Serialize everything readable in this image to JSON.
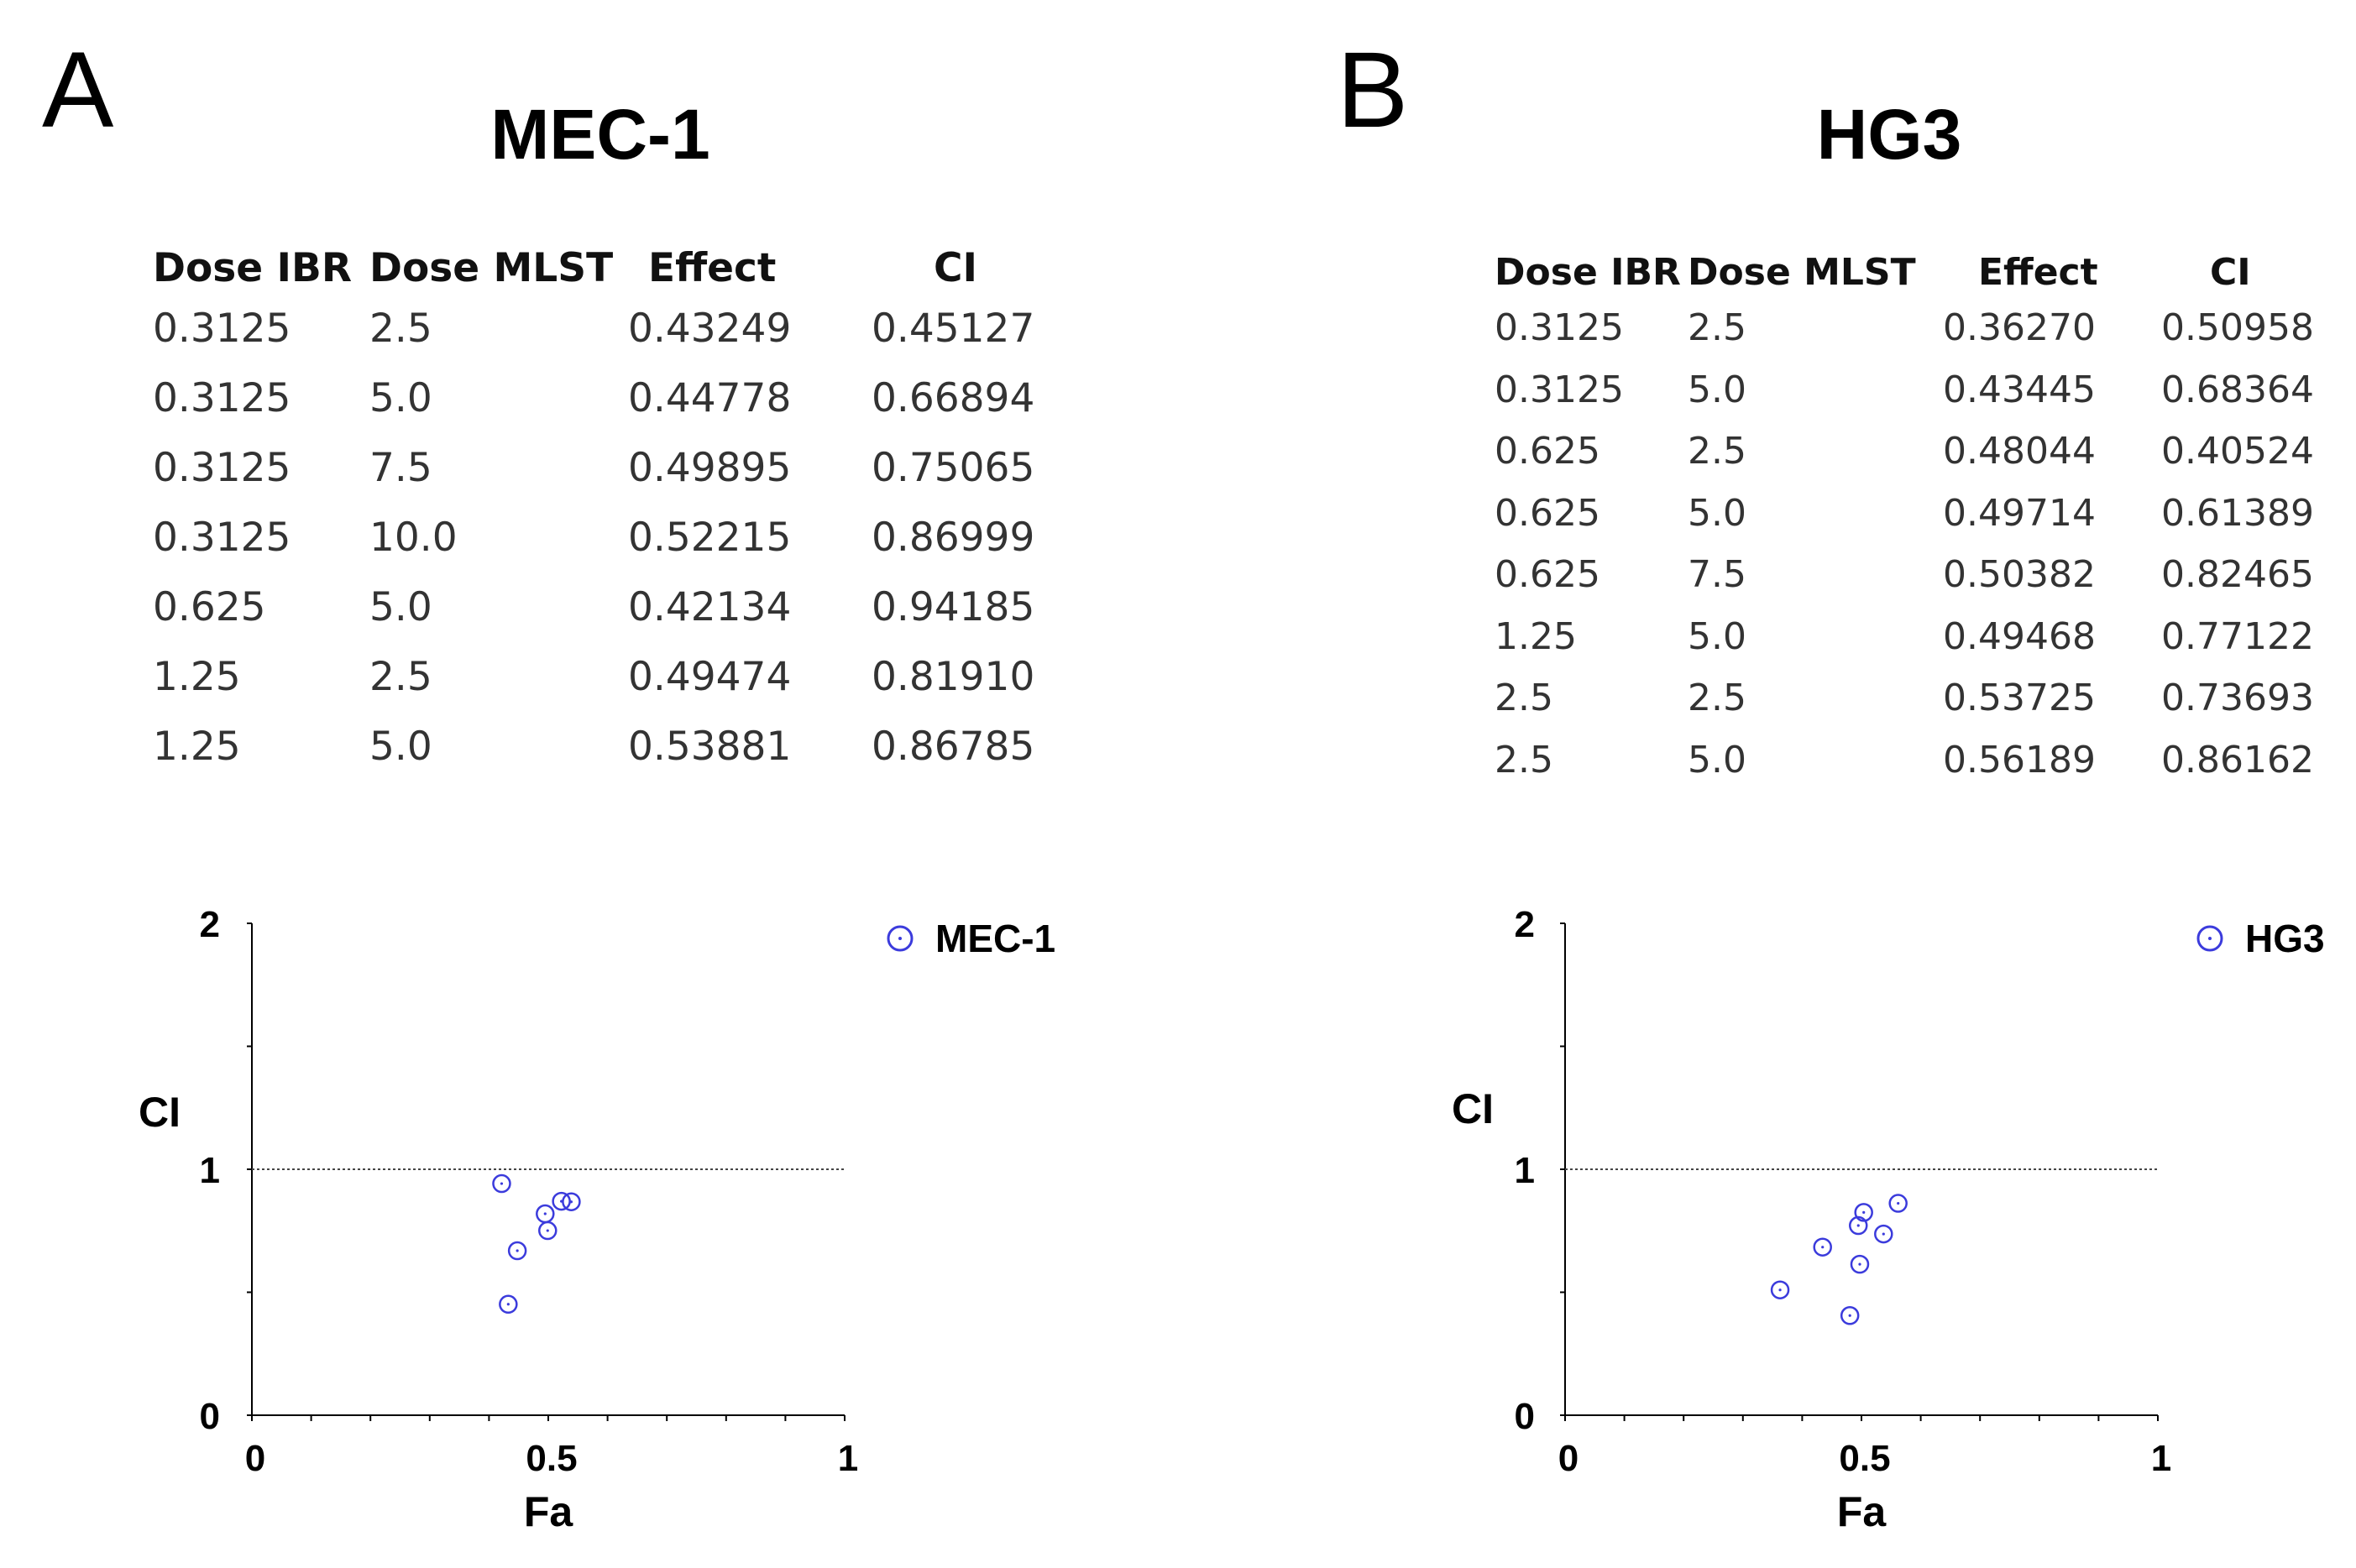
{
  "panels": [
    {
      "letter": "A",
      "title": "MEC-1",
      "table": {
        "headers": [
          "Dose IBR",
          "Dose MLST",
          "Effect",
          "CI"
        ],
        "rows": [
          [
            "0.3125",
            "2.5",
            "0.43249",
            "0.45127"
          ],
          [
            "0.3125",
            "5.0",
            "0.44778",
            "0.66894"
          ],
          [
            "0.3125",
            "7.5",
            "0.49895",
            "0.75065"
          ],
          [
            "0.3125",
            "10.0",
            "0.52215",
            "0.86999"
          ],
          [
            "0.625",
            "5.0",
            "0.42134",
            "0.94185"
          ],
          [
            "1.25",
            "2.5",
            "0.49474",
            "0.81910"
          ],
          [
            "1.25",
            "5.0",
            "0.53881",
            "0.86785"
          ]
        ]
      }
    },
    {
      "letter": "B",
      "title": "HG3",
      "table": {
        "headers": [
          "Dose IBR",
          "Dose MLST",
          "Effect",
          "CI"
        ],
        "rows": [
          [
            "0.3125",
            "2.5",
            "0.36270",
            "0.50958"
          ],
          [
            "0.3125",
            "5.0",
            "0.43445",
            "0.68364"
          ],
          [
            "0.625",
            "2.5",
            "0.48044",
            "0.40524"
          ],
          [
            "0.625",
            "5.0",
            "0.49714",
            "0.61389"
          ],
          [
            "0.625",
            "7.5",
            "0.50382",
            "0.82465"
          ],
          [
            "1.25",
            "5.0",
            "0.49468",
            "0.77122"
          ],
          [
            "2.5",
            "2.5",
            "0.53725",
            "0.73693"
          ],
          [
            "2.5",
            "5.0",
            "0.56189",
            "0.86162"
          ]
        ]
      }
    }
  ],
  "chart_data": [
    {
      "type": "scatter",
      "title": "",
      "xlabel": "Fa",
      "ylabel": "CI",
      "xlim": [
        0,
        1
      ],
      "ylim": [
        0,
        2
      ],
      "xticks": [
        "0",
        "0.5",
        "1"
      ],
      "yticks": [
        "0",
        "1",
        "2"
      ],
      "reference_line": 1,
      "legend": "top-right",
      "marker_color": "#3b3bdc",
      "series": [
        {
          "name": "MEC-1",
          "x": [
            0.43249,
            0.44778,
            0.49895,
            0.52215,
            0.42134,
            0.49474,
            0.53881
          ],
          "y": [
            0.45127,
            0.66894,
            0.75065,
            0.86999,
            0.94185,
            0.8191,
            0.86785
          ]
        }
      ]
    },
    {
      "type": "scatter",
      "title": "",
      "xlabel": "Fa",
      "ylabel": "CI",
      "xlim": [
        0,
        1
      ],
      "ylim": [
        0,
        2
      ],
      "xticks": [
        "0",
        "0.5",
        "1"
      ],
      "yticks": [
        "0",
        "1",
        "2"
      ],
      "reference_line": 1,
      "legend": "top-right",
      "marker_color": "#3b3bdc",
      "series": [
        {
          "name": "HG3",
          "x": [
            0.3627,
            0.43445,
            0.48044,
            0.49714,
            0.50382,
            0.49468,
            0.53725,
            0.56189
          ],
          "y": [
            0.50958,
            0.68364,
            0.40524,
            0.61389,
            0.82465,
            0.77122,
            0.73693,
            0.86162
          ]
        }
      ]
    }
  ]
}
